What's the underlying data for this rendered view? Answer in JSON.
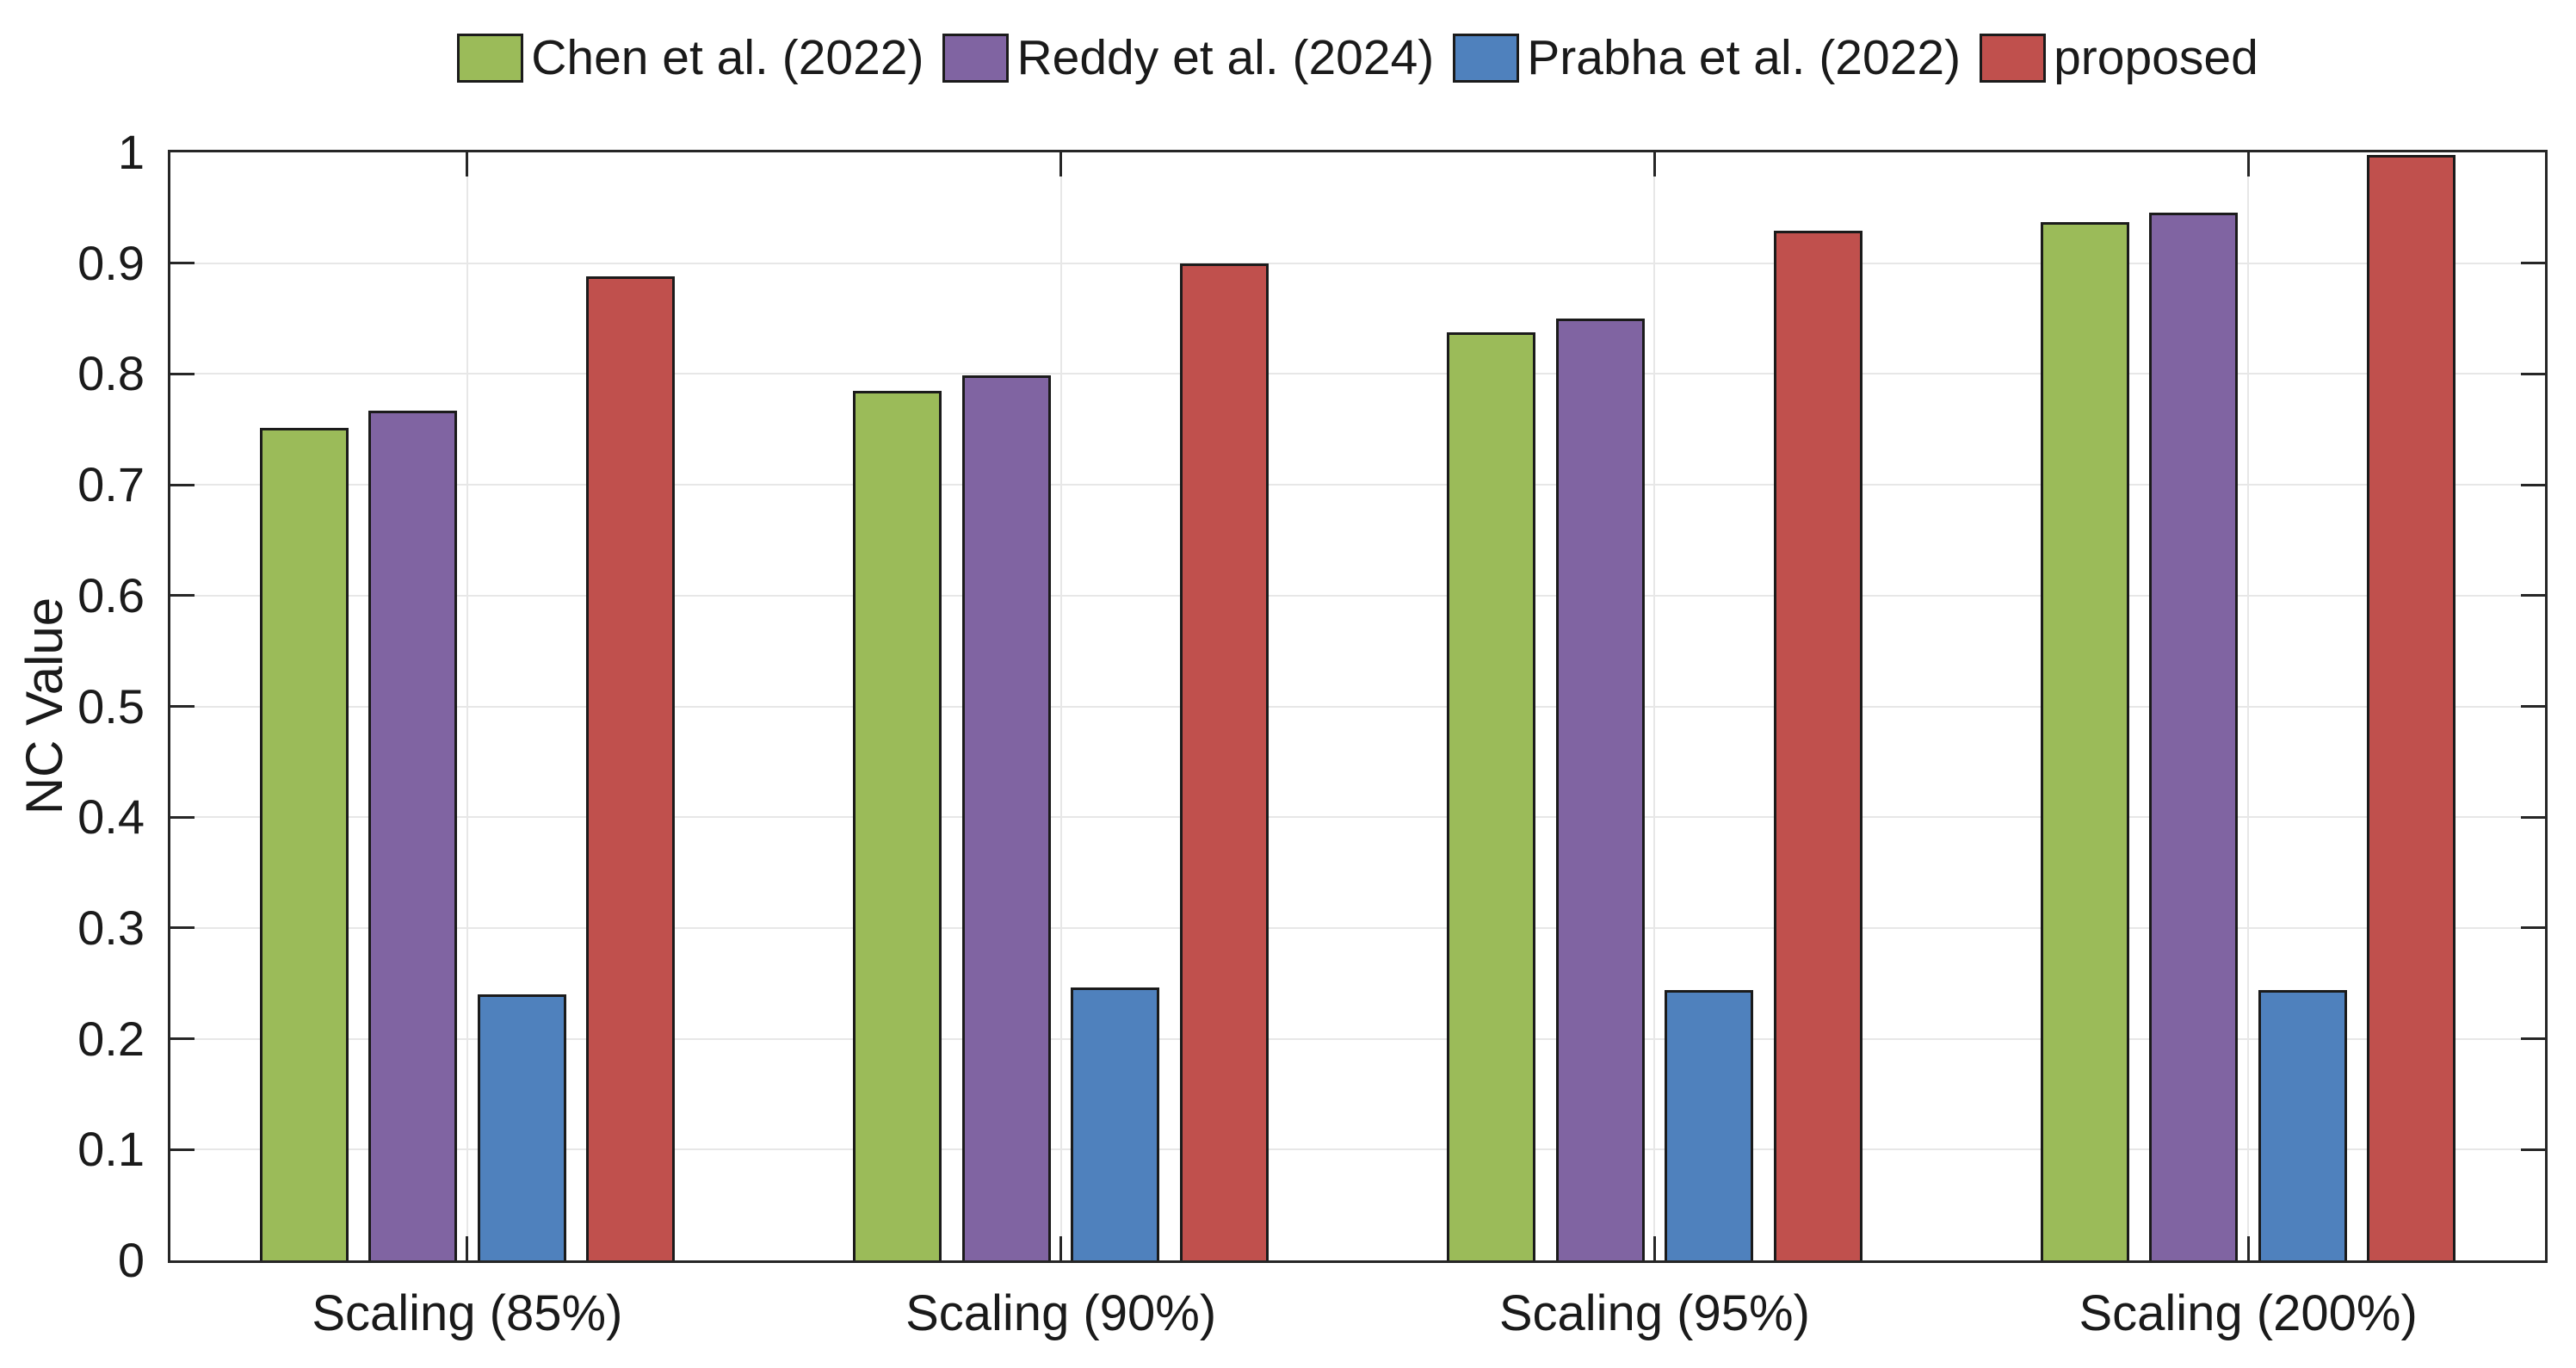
{
  "chart_data": {
    "type": "bar",
    "title": "",
    "xlabel": "",
    "ylabel": "NC Value",
    "categories": [
      "Scaling (85%)",
      "Scaling (90%)",
      "Scaling (95%)",
      "Scaling (200%)"
    ],
    "series": [
      {
        "name": "Chen et al. (2022)",
        "color": "#9BBB59",
        "values": [
          0.751,
          0.785,
          0.838,
          0.937
        ]
      },
      {
        "name": "Reddy et al. (2024)",
        "color": "#8064A2",
        "values": [
          0.767,
          0.799,
          0.85,
          0.946
        ]
      },
      {
        "name": "Prabha et al. (2022)",
        "color": "#4F81BD",
        "values": [
          0.24,
          0.246,
          0.244,
          0.244
        ]
      },
      {
        "name": "proposed",
        "color": "#C0504D",
        "values": [
          0.888,
          0.9,
          0.929,
          0.998
        ]
      }
    ],
    "ylim": [
      0,
      1
    ],
    "yticks": [
      0,
      0.1,
      0.2,
      0.3,
      0.4,
      0.5,
      0.6,
      0.7,
      0.8,
      0.9,
      1
    ],
    "ytick_labels": [
      "0",
      "0.1",
      "0.2",
      "0.3",
      "0.4",
      "0.5",
      "0.6",
      "0.7",
      "0.8",
      "0.9",
      "1"
    ],
    "grid": true,
    "x_gridlines_at_group_centers": true,
    "legend_position": "top-horizontal",
    "bar_edge_color": "#1b1b1b",
    "axis_color": "#262626",
    "grid_color": "#e7e7e7"
  }
}
